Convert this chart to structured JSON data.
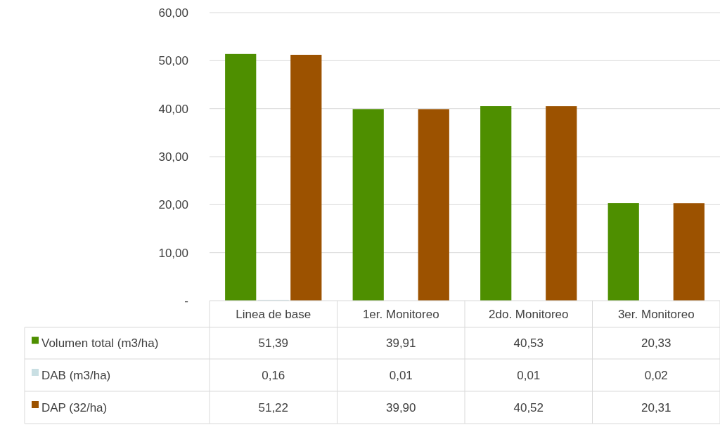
{
  "chart_data": {
    "type": "bar",
    "categories": [
      "Linea de base",
      "1er. Monitoreo",
      "2do. Monitoreo",
      "3er. Monitoreo"
    ],
    "series": [
      {
        "name": "Volumen total (m3/ha)",
        "color": "#4e8f00",
        "values": [
          51.39,
          39.91,
          40.53,
          20.33
        ],
        "value_labels": [
          "51,39",
          "39,91",
          "40,53",
          "20,33"
        ]
      },
      {
        "name": "DAB (m3/ha)",
        "color": "#c9dfe3",
        "values": [
          0.16,
          0.01,
          0.01,
          0.02
        ],
        "value_labels": [
          "0,16",
          "0,01",
          "0,01",
          "0,02"
        ]
      },
      {
        "name": "DAP (32/ha)",
        "color": "#9c5200",
        "values": [
          51.22,
          39.9,
          40.52,
          20.31
        ],
        "value_labels": [
          "51,22",
          "39,90",
          "40,52",
          "20,31"
        ]
      }
    ],
    "ylim": [
      0,
      60
    ],
    "yticks": [
      {
        "value": 0,
        "label": "-"
      },
      {
        "value": 10,
        "label": "10,00"
      },
      {
        "value": 20,
        "label": "20,00"
      },
      {
        "value": 30,
        "label": "30,00"
      },
      {
        "value": 40,
        "label": "40,00"
      },
      {
        "value": 50,
        "label": "50,00"
      },
      {
        "value": 60,
        "label": "60,00"
      }
    ],
    "grid": "y",
    "legend": "bottom"
  }
}
